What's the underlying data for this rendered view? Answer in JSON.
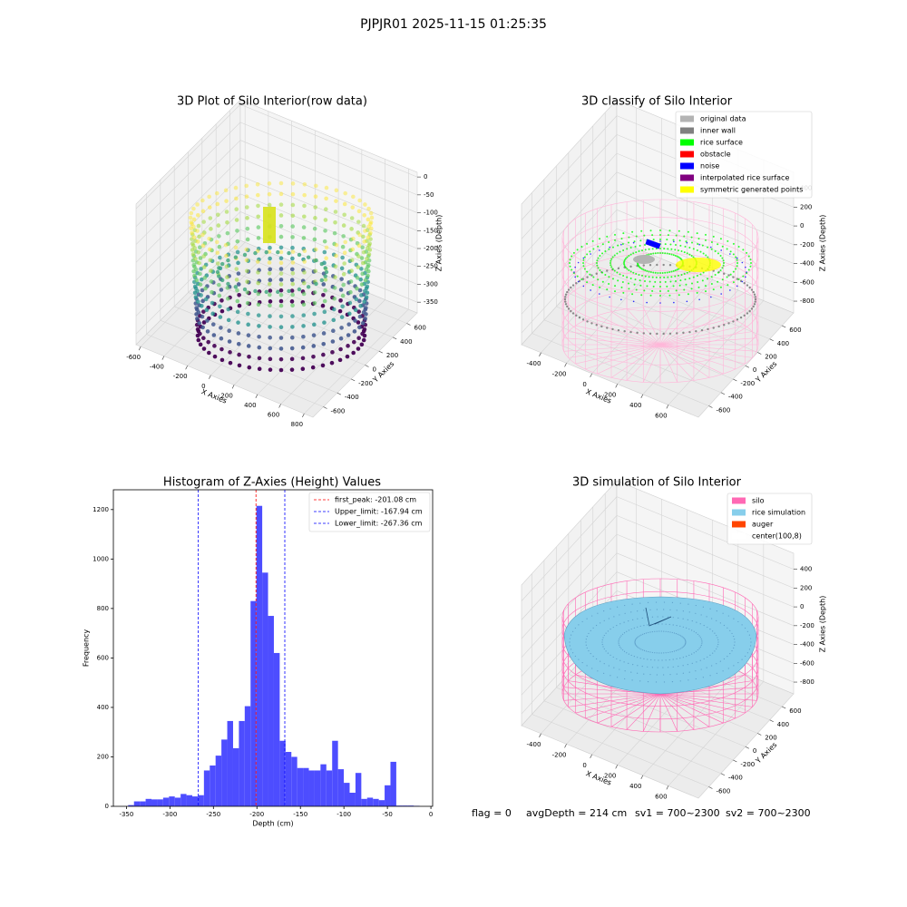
{
  "title": "PJPJR01 2025-11-15 01:25:35",
  "chart_data": [
    {
      "type": "scatter3d",
      "title": "3D Plot of Silo Interior(row data)",
      "x_label": "X Axies",
      "y_label": "Y Axies",
      "z_label": "Z Axies (Depth)",
      "xlim": [
        -640,
        875
      ],
      "xticks": [
        -600,
        -400,
        -200,
        0,
        200,
        400,
        600,
        800
      ],
      "ylim": [
        -750,
        750
      ],
      "yticks": [
        -600,
        -400,
        -200,
        0,
        200,
        400,
        600
      ],
      "zlim": [
        -380,
        13
      ],
      "zticks": [
        0,
        -50,
        -100,
        -150,
        -200,
        -250,
        -300,
        -350
      ]
    },
    {
      "type": "scatter3d",
      "title": "3D classify of Silo Interior",
      "x_label": "X Axies",
      "y_label": "Y Axies",
      "z_label": "Z Axies (Depth)",
      "xlim": [
        -553,
        836
      ],
      "xticks": [
        -400,
        -200,
        0,
        200,
        400,
        600
      ],
      "ylim": [
        -770,
        790
      ],
      "yticks": [
        -600,
        -400,
        -200,
        0,
        200,
        400,
        600
      ],
      "zlim": [
        -925,
        570
      ],
      "zticks": [
        400,
        200,
        0,
        -200,
        -400,
        -600,
        -800
      ],
      "legend": [
        {
          "name": "original data",
          "color": "#b3b3b3"
        },
        {
          "name": "inner wall",
          "color": "#808080"
        },
        {
          "name": "rice surface",
          "color": "#00ff00"
        },
        {
          "name": "obstacle",
          "color": "#ff0000"
        },
        {
          "name": "noise",
          "color": "#0000ff"
        },
        {
          "name": "interpolated rice surface",
          "color": "#800080"
        },
        {
          "name": "symmetric generated points",
          "color": "#ffff00"
        }
      ]
    },
    {
      "type": "histogram",
      "title": "Histogram of Z-Axies (Height) Values",
      "x_label": "Depth (cm)",
      "y_label": "Frequency",
      "color": "#4d4dff",
      "bins": [
        -348,
        -341.3,
        -334.6,
        -327.9,
        -321.2,
        -314.5,
        -307.8,
        -301.1,
        -294.4,
        -287.7,
        -281,
        -274.3,
        -267.6,
        -260.9,
        -254.2,
        -247.5,
        -240.8,
        -234.1,
        -227.4,
        -220.7,
        -214,
        -207.3,
        -200.6,
        -193.9,
        -187.2,
        -180.5,
        -173.8,
        -167.1,
        -160.4,
        -153.7,
        -147,
        -140.3,
        -133.6,
        -126.9,
        -120.2,
        -113.5,
        -106.8,
        -100.1,
        -93.4,
        -86.7,
        -80,
        -73.3,
        -66.6,
        -59.9,
        -53.2,
        -46.5,
        -39.8,
        -33.1,
        -26.4,
        -19.7,
        -13
      ],
      "values": [
        5,
        20,
        20,
        30,
        28,
        28,
        35,
        40,
        35,
        50,
        45,
        40,
        45,
        145,
        165,
        205,
        270,
        345,
        235,
        345,
        405,
        830,
        1215,
        945,
        770,
        620,
        265,
        220,
        200,
        155,
        155,
        145,
        145,
        170,
        145,
        265,
        150,
        95,
        55,
        135,
        30,
        35,
        30,
        25,
        85,
        180,
        3,
        3,
        3,
        2
      ],
      "xlim": [
        -365,
        2
      ],
      "xticks": [
        -350,
        -300,
        -250,
        -200,
        -150,
        -100,
        -50,
        0
      ],
      "ylim": [
        0,
        1280
      ],
      "yticks": [
        0,
        200,
        400,
        600,
        800,
        1000,
        1200
      ],
      "lines": [
        {
          "value": -201.08,
          "label": "first_peak: -201.08 cm",
          "color": "#ff0000",
          "linestyle": "dashed"
        },
        {
          "value": -167.94,
          "label": "Upper_limit: -167.94 cm",
          "color": "#0000ff",
          "linestyle": "dashed"
        },
        {
          "value": -267.36,
          "label": "Lower_limit: -267.36 cm",
          "color": "#0000ff",
          "linestyle": "dashed"
        }
      ],
      "legend_position": "upper right"
    },
    {
      "type": "surface3d",
      "title": "3D simulation of Silo Interior",
      "x_label": "X Axies",
      "y_label": "Y Axies",
      "z_label": "Z Axies (Depth)",
      "xlim": [
        -553,
        836
      ],
      "xticks": [
        -400,
        -200,
        0,
        200,
        400,
        600
      ],
      "ylim": [
        -770,
        790
      ],
      "yticks": [
        -600,
        -400,
        -200,
        0,
        200,
        400,
        600
      ],
      "zlim": [
        -925,
        570
      ],
      "zticks": [
        400,
        200,
        0,
        -200,
        -400,
        -600,
        -800
      ],
      "legend": [
        {
          "name": "silo",
          "color": "#ff69b4"
        },
        {
          "name": "rice simulation",
          "color": "#87ceeb"
        },
        {
          "name": "auger",
          "color": "#ff4500"
        },
        {
          "name": "center(100,8)",
          "color": "#ffffff"
        }
      ]
    }
  ],
  "footer": [
    "flag = 0",
    "avgDepth = 214 cm",
    "sv1 = 700~2300",
    "sv2 = 700~2300"
  ]
}
